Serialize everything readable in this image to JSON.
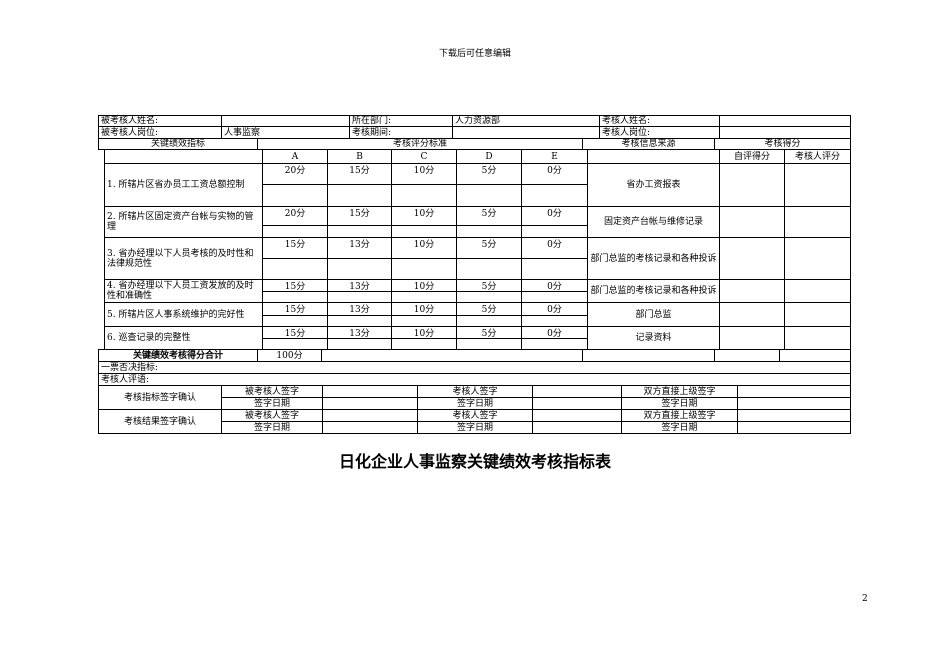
{
  "header_note": "下载后可任意编辑",
  "page_number": "2",
  "title": "日化企业人事监察关键绩效考核指标表",
  "info": {
    "assessee_name_label": "被考核人姓名:",
    "assessee_name": "",
    "dept_label": "所在部门:",
    "dept": "人力资源部",
    "assessor_name_label": "考核人姓名:",
    "assessor_name": "",
    "assessee_post_label": "被考核人岗位:",
    "assessee_post": "人事监察",
    "period_label": "考核期间:",
    "period": "",
    "assessor_post_label": "考核人岗位:",
    "assessor_post": ""
  },
  "headers": {
    "kpi": "关键绩效指标",
    "standard": "考核评分标准",
    "source": "考核信息来源",
    "score": "考核得分",
    "grades": [
      "A",
      "B",
      "C",
      "D",
      "E"
    ],
    "self": "自评得分",
    "assessor": "考核人评分"
  },
  "items": [
    {
      "name": "1. 所辖片区省办员工工资总额控制",
      "scores": [
        "20分",
        "15分",
        "10分",
        "5分",
        "0分"
      ],
      "source": "省办工资报表"
    },
    {
      "name": "2. 所辖片区固定资产台帐与实物的管理",
      "scores": [
        "20分",
        "15分",
        "10分",
        "5分",
        "0分"
      ],
      "source": "固定资产台帐与维修记录"
    },
    {
      "name": "3. 省办经理以下人员考核的及时性和法律规范性",
      "scores": [
        "15分",
        "13分",
        "10分",
        "5分",
        "0分"
      ],
      "source": "部门总监的考核记录和各种投诉"
    },
    {
      "name": "4. 省办经理以下人员工资发放的及时性和准确性",
      "scores": [
        "15分",
        "13分",
        "10分",
        "5分",
        "0分"
      ],
      "source": "部门总监的考核记录和各种投诉"
    },
    {
      "name": "5. 所辖片区人事系统维护的完好性",
      "scores": [
        "15分",
        "13分",
        "10分",
        "5分",
        "0分"
      ],
      "source": "部门总监"
    },
    {
      "name": "6. 巡查记录的完整性",
      "scores": [
        "15分",
        "13分",
        "10分",
        "5分",
        "0分"
      ],
      "source": "记录资料"
    }
  ],
  "total": {
    "label": "关键绩效考核得分合计",
    "value": "100分"
  },
  "veto_label": "一票否决指标:",
  "comment_label": "考核人评语:",
  "sign": {
    "indicator_confirm": "考核指标签字确认",
    "result_confirm": "考核结果签字确认",
    "assessee_sign": "被考核人签字",
    "assessor_sign": "考核人签字",
    "superior_sign": "双方直接上级签字",
    "date": "签字日期"
  }
}
